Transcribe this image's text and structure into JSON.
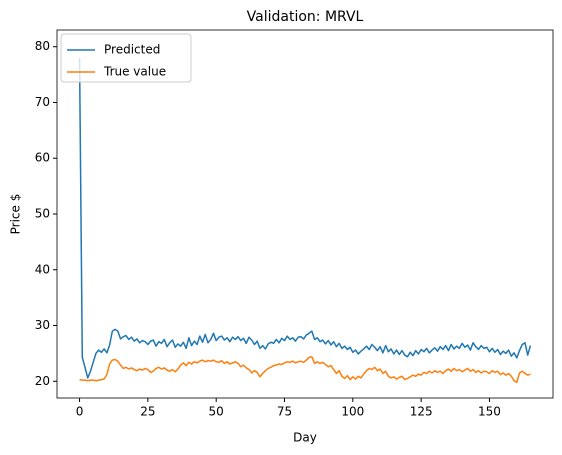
{
  "chart_data": {
    "type": "line",
    "title": "Validation: MRVL",
    "xlabel": "Day",
    "ylabel": "Price $",
    "x": [
      0,
      1,
      2,
      3,
      4,
      5,
      6,
      7,
      8,
      9,
      10,
      11,
      12,
      13,
      14,
      15,
      16,
      17,
      18,
      19,
      20,
      21,
      22,
      23,
      24,
      25,
      26,
      27,
      28,
      29,
      30,
      31,
      32,
      33,
      34,
      35,
      36,
      37,
      38,
      39,
      40,
      41,
      42,
      43,
      44,
      45,
      46,
      47,
      48,
      49,
      50,
      51,
      52,
      53,
      54,
      55,
      56,
      57,
      58,
      59,
      60,
      61,
      62,
      63,
      64,
      65,
      66,
      67,
      68,
      69,
      70,
      71,
      72,
      73,
      74,
      75,
      76,
      77,
      78,
      79,
      80,
      81,
      82,
      83,
      84,
      85,
      86,
      87,
      88,
      89,
      90,
      91,
      92,
      93,
      94,
      95,
      96,
      97,
      98,
      99,
      100,
      101,
      102,
      103,
      104,
      105,
      106,
      107,
      108,
      109,
      110,
      111,
      112,
      113,
      114,
      115,
      116,
      117,
      118,
      119,
      120,
      121,
      122,
      123,
      124,
      125,
      126,
      127,
      128,
      129,
      130,
      131,
      132,
      133,
      134,
      135,
      136,
      137,
      138,
      139,
      140,
      141,
      142,
      143,
      144,
      145,
      146,
      147,
      148,
      149,
      150,
      151,
      152,
      153,
      154,
      155,
      156,
      157,
      158,
      159,
      160,
      161,
      162,
      163,
      164,
      165
    ],
    "series": [
      {
        "name": "Predicted",
        "color": "#1f77b4",
        "values": [
          78,
          24.3,
          22.5,
          20.6,
          21.8,
          23.4,
          25,
          25.6,
          25.2,
          25.8,
          25.1,
          26.5,
          29,
          29.3,
          29,
          27.6,
          28,
          28.2,
          27.5,
          27.9,
          27.2,
          27.6,
          26.9,
          27.3,
          27.1,
          26.6,
          27.2,
          27.4,
          26.3,
          27.1,
          26.8,
          27.5,
          26.2,
          26.9,
          27.4,
          26.1,
          26.7,
          26.3,
          27,
          25.9,
          27.8,
          26.4,
          27.2,
          26.6,
          28.1,
          27,
          28.4,
          26.9,
          27.5,
          28.6,
          27.3,
          27.9,
          28.1,
          27.4,
          27.8,
          27.1,
          27.9,
          27.5,
          28,
          27.3,
          27.7,
          26.8,
          27.9,
          27.4,
          26.6,
          27.2,
          25.9,
          26.4,
          25.8,
          26.7,
          27,
          26.8,
          27.5,
          26.9,
          27.7,
          27.3,
          28.1,
          27.5,
          27.8,
          27.2,
          27.9,
          28,
          27.6,
          28.3,
          28.6,
          29,
          27.5,
          27.8,
          27.1,
          27.4,
          26.7,
          27.3,
          26.5,
          27.1,
          26.2,
          26.8,
          25.9,
          26.3,
          25.7,
          26.1,
          25.2,
          25.6,
          24.9,
          25.4,
          25.8,
          26.3,
          25.7,
          26.6,
          26.1,
          25.5,
          26.2,
          25.1,
          26.4,
          25.3,
          25.8,
          24.9,
          25.6,
          24.8,
          25.5,
          24.7,
          24.4,
          25.2,
          24.6,
          25.5,
          24.9,
          25.7,
          25.3,
          25.9,
          25.1,
          25.6,
          26,
          25.4,
          26.2,
          25.7,
          26.4,
          25.5,
          26.6,
          25.8,
          26.3,
          25.9,
          26.8,
          26.1,
          26.5,
          25.6,
          26.9,
          26.2,
          25.7,
          26.4,
          25.9,
          26.1,
          25.3,
          25.9,
          25.2,
          25.7,
          24.8,
          25.4,
          25,
          25.6,
          24.5,
          25.1,
          24.2,
          25.5,
          26.6,
          26.9,
          24.7,
          26.4
        ]
      },
      {
        "name": "True value",
        "color": "#ff7f0e",
        "values": [
          20.3,
          20.2,
          20.2,
          20.1,
          20.2,
          20.2,
          20.1,
          20.2,
          20.3,
          20.4,
          21.2,
          23.1,
          23.8,
          23.9,
          23.6,
          22.9,
          22.3,
          22.5,
          22.2,
          22.4,
          22.1,
          21.9,
          22.2,
          22,
          22.3,
          22.1,
          21.6,
          21.8,
          22.3,
          22.5,
          22.2,
          22.4,
          22,
          21.8,
          22.1,
          21.7,
          22.2,
          22.9,
          23.3,
          22.8,
          23.4,
          23.1,
          23.5,
          23.3,
          23.6,
          23.8,
          23.5,
          23.7,
          23.6,
          23.8,
          23.5,
          23.4,
          23.7,
          23.2,
          23.5,
          23.1,
          23.3,
          23.5,
          23.2,
          22.6,
          22.9,
          22.4,
          22.1,
          21.5,
          21.9,
          21.6,
          20.8,
          21.4,
          21.9,
          22.3,
          22.5,
          22.8,
          22.9,
          23.1,
          23,
          23.3,
          23.5,
          23.4,
          23.6,
          23.3,
          23.5,
          23.6,
          23.4,
          23.8,
          24.3,
          24.4,
          23.2,
          23.5,
          23.2,
          23.4,
          23,
          22.6,
          22.8,
          22.1,
          21.4,
          21.9,
          20.9,
          20.5,
          21,
          20.3,
          20.8,
          20.4,
          20.9,
          20.6,
          21.3,
          21.9,
          22.3,
          22.1,
          22.5,
          21.9,
          22.2,
          21.4,
          21.8,
          20.9,
          20.6,
          20.8,
          20.4,
          20.7,
          20.9,
          20.3,
          20.5,
          20.8,
          21.1,
          20.9,
          21.3,
          21.1,
          21.6,
          21.4,
          21.8,
          21.5,
          21.9,
          21.6,
          21.8,
          21.4,
          21.9,
          22.2,
          21.8,
          22.3,
          21.9,
          22.1,
          21.7,
          22,
          22.3,
          21.8,
          22.1,
          21.6,
          21.9,
          21.5,
          21.8,
          21.7,
          21.4,
          21.9,
          21.6,
          21.8,
          21.2,
          21.5,
          21.1,
          21.4,
          20.9,
          20.1,
          19.8,
          21.5,
          21.8,
          21.4,
          21.1,
          21.3
        ]
      }
    ],
    "xlim": [
      -8.25,
      173.25
    ],
    "xticks": [
      0,
      25,
      50,
      75,
      100,
      125,
      150
    ],
    "ylim": [
      17.0,
      83.0
    ],
    "yticks": [
      20,
      30,
      40,
      50,
      60,
      70,
      80
    ],
    "grid": false,
    "legend": "upper left"
  }
}
